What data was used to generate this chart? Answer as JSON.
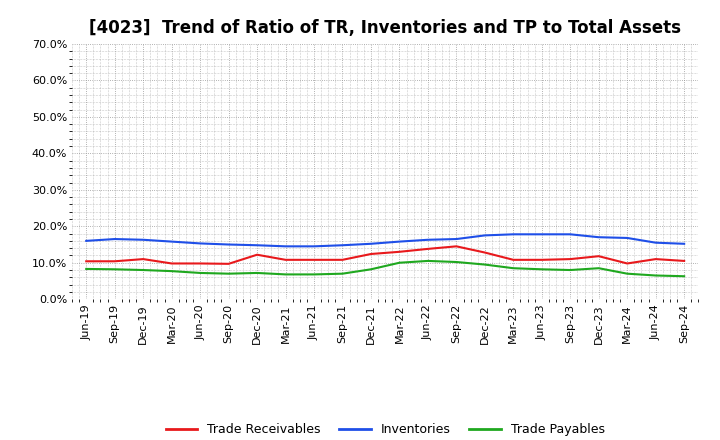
{
  "title": "[4023]  Trend of Ratio of TR, Inventories and TP to Total Assets",
  "x_labels": [
    "Jun-19",
    "Sep-19",
    "Dec-19",
    "Mar-20",
    "Jun-20",
    "Sep-20",
    "Dec-20",
    "Mar-21",
    "Jun-21",
    "Sep-21",
    "Dec-21",
    "Mar-22",
    "Jun-22",
    "Sep-22",
    "Dec-22",
    "Mar-23",
    "Jun-23",
    "Sep-23",
    "Dec-23",
    "Mar-24",
    "Jun-24",
    "Sep-24"
  ],
  "trade_receivables": [
    0.104,
    0.104,
    0.11,
    0.098,
    0.098,
    0.097,
    0.122,
    0.108,
    0.108,
    0.108,
    0.124,
    0.13,
    0.138,
    0.145,
    0.128,
    0.108,
    0.108,
    0.11,
    0.118,
    0.098,
    0.11,
    0.105
  ],
  "inventories": [
    0.16,
    0.165,
    0.163,
    0.158,
    0.153,
    0.15,
    0.148,
    0.145,
    0.145,
    0.148,
    0.152,
    0.158,
    0.163,
    0.165,
    0.175,
    0.178,
    0.178,
    0.178,
    0.17,
    0.168,
    0.155,
    0.152
  ],
  "trade_payables": [
    0.083,
    0.082,
    0.08,
    0.077,
    0.072,
    0.07,
    0.072,
    0.068,
    0.068,
    0.07,
    0.082,
    0.1,
    0.105,
    0.102,
    0.095,
    0.085,
    0.082,
    0.08,
    0.085,
    0.07,
    0.065,
    0.063
  ],
  "tr_color": "#e8191c",
  "inv_color": "#1f4fe8",
  "tp_color": "#1fa81f",
  "ylim": [
    0.0,
    0.7
  ],
  "yticks": [
    0.0,
    0.1,
    0.2,
    0.3,
    0.4,
    0.5,
    0.6,
    0.7
  ],
  "background_color": "#ffffff",
  "plot_bg_color": "#ffffff",
  "grid_color": "#999999",
  "title_fontsize": 12,
  "tick_fontsize": 8,
  "legend_labels": [
    "Trade Receivables",
    "Inventories",
    "Trade Payables"
  ],
  "legend_fontsize": 9
}
